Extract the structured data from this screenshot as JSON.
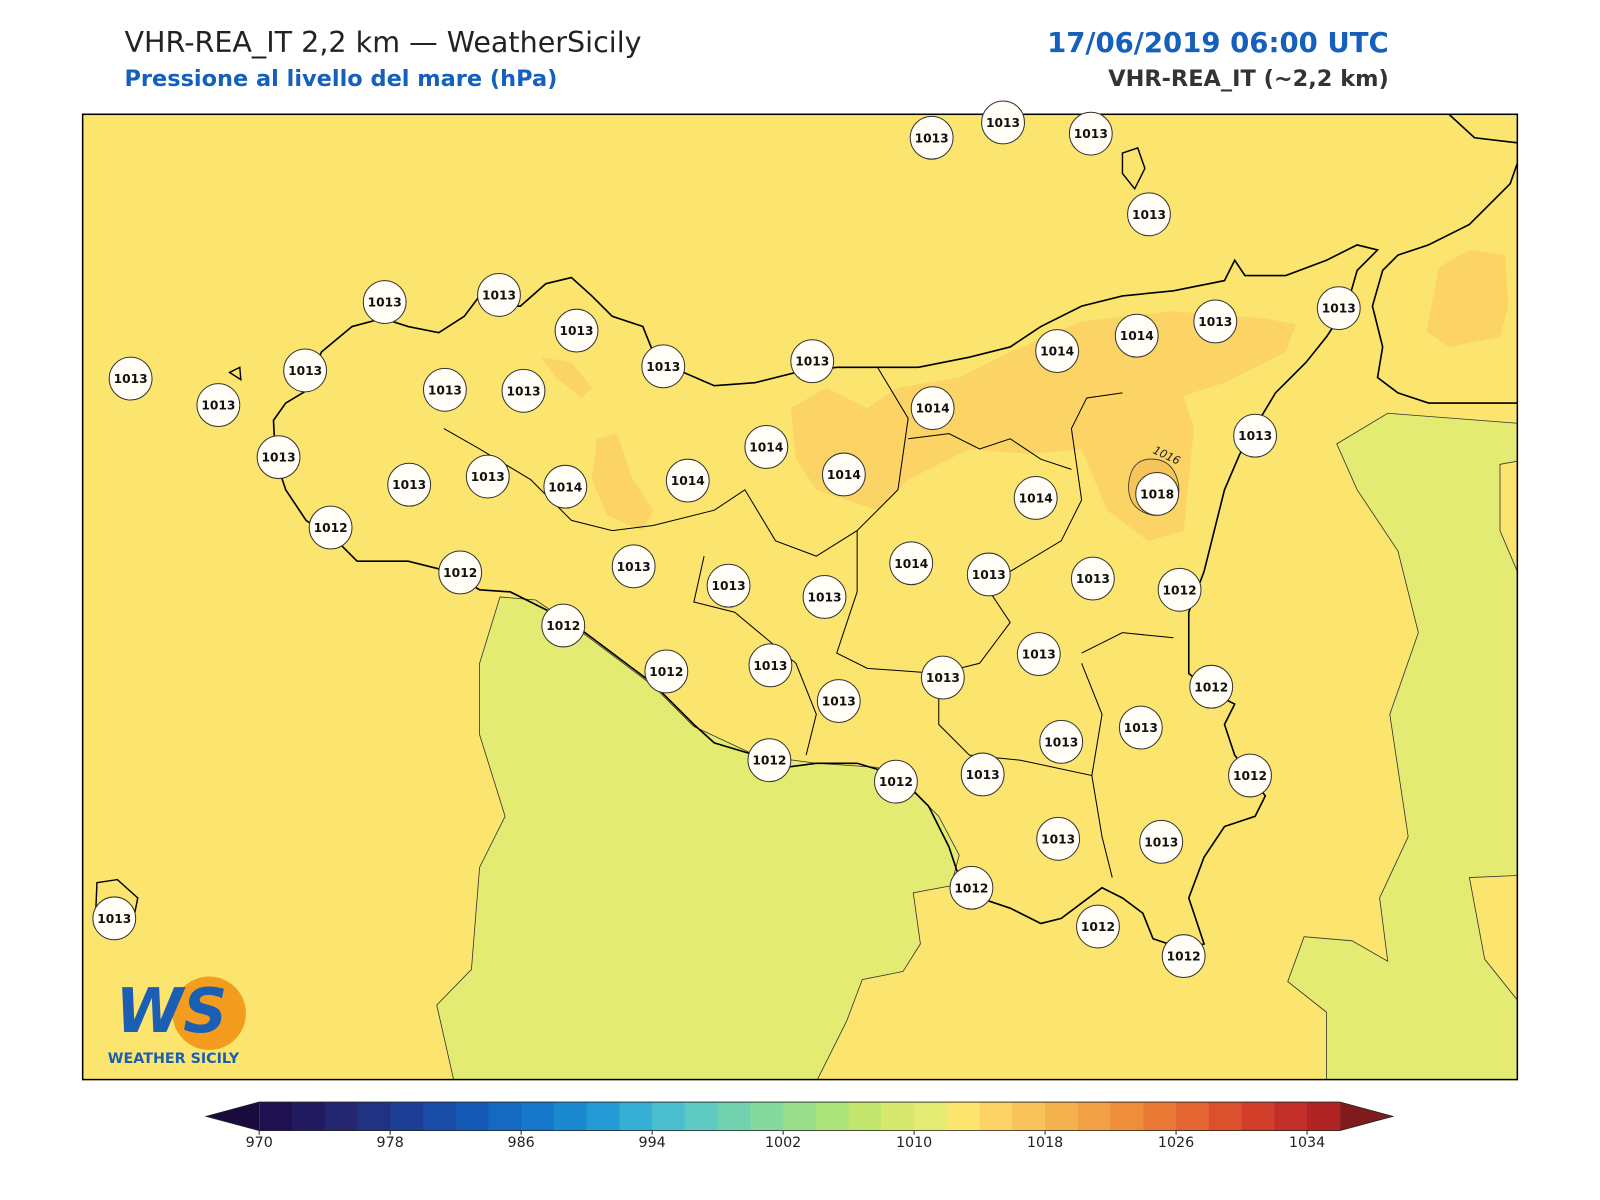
{
  "header": {
    "title": "VHR-REA_IT 2,2 km — WeatherSicily",
    "subtitle": "Pressione al livello del mare (hPa)",
    "date": "17/06/2019 06:00 UTC",
    "model": "VHR-REA_IT (~2,2 km)"
  },
  "map": {
    "stations": [
      1013,
      1013,
      1013,
      1013,
      1013,
      1013,
      1013,
      1013,
      1013,
      1014,
      1014,
      1013,
      1013,
      1013,
      1013,
      1013,
      1013,
      1013,
      1014,
      1013,
      1013,
      1013,
      1013,
      1014,
      1014,
      1014,
      1014,
      1014,
      1018,
      1012,
      1012,
      1013,
      1013,
      1013,
      1014,
      1013,
      1013,
      1012,
      1012,
      1012,
      1013,
      1013,
      1013,
      1013,
      1012,
      1013,
      1013,
      1012,
      1012,
      1013,
      1012,
      1013,
      1013,
      1012,
      1012,
      1012,
      1013
    ],
    "contour_label": "1016"
  },
  "colorbar": {
    "lim": [
      970,
      1036
    ],
    "ticks": [
      970,
      978,
      986,
      994,
      1002,
      1010,
      1018,
      1026,
      1034
    ],
    "colors": [
      "#1f1150",
      "#231b60",
      "#242670",
      "#203282",
      "#1c3f95",
      "#184ca6",
      "#155bb5",
      "#1469c1",
      "#1578ca",
      "#1a89d0",
      "#249bd4",
      "#35afd4",
      "#4bbfcd",
      "#5fcac1",
      "#72d2b0",
      "#86d99d",
      "#99de8a",
      "#ace37a",
      "#c2e56e",
      "#d6e96e",
      "#e3eb72",
      "#fbe56e",
      "#fbd465",
      "#f7c35a",
      "#f4b24f",
      "#f1a045",
      "#ee8d3c",
      "#ea7936",
      "#e46531",
      "#dc512d",
      "#d13f2b",
      "#c22f28",
      "#b02426"
    ],
    "extend_colors": [
      "#1a0b3f",
      "#7f1a1f"
    ]
  },
  "logo": {
    "mark": "WS",
    "caption": "WEATHER SICILY"
  }
}
